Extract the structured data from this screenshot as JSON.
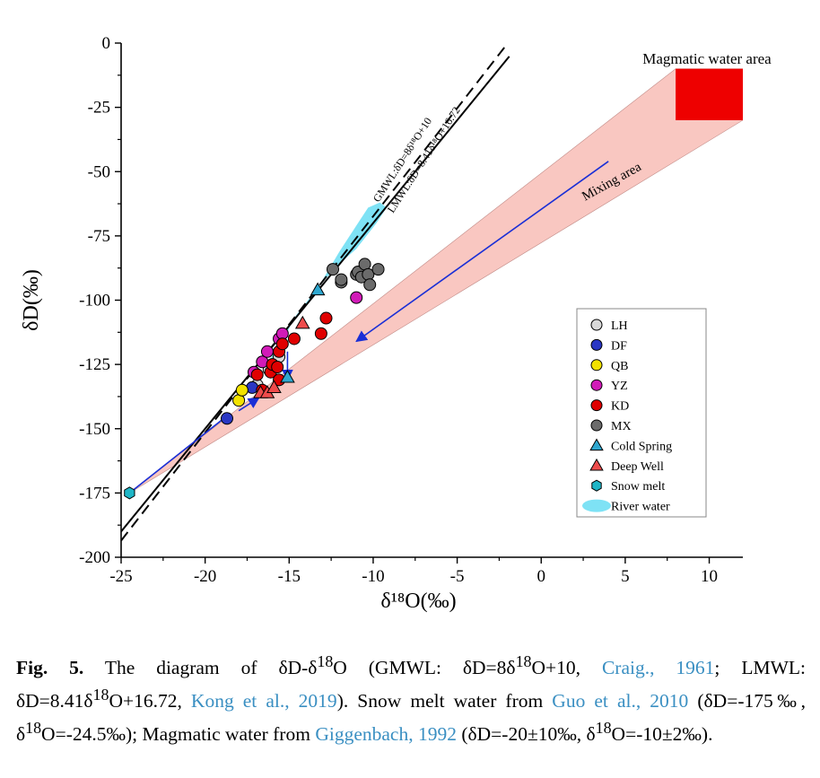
{
  "chart_data": {
    "type": "scatter",
    "xlabel": "δ¹⁸O(‰)",
    "ylabel": "δD(‰)",
    "xlim": [
      -25,
      12
    ],
    "ylim": [
      -200,
      0
    ],
    "x_ticks": [
      -25,
      -20,
      -15,
      -10,
      -5,
      0,
      5,
      10
    ],
    "y_ticks": [
      0,
      -25,
      -50,
      -75,
      -100,
      -125,
      -150,
      -175,
      -200
    ],
    "lines": [
      {
        "name": "GMWL:δD=8δ¹⁸O+10",
        "slope": 8,
        "intercept": 10,
        "style": "solid",
        "x_range": [
          -25,
          -1.9
        ]
      },
      {
        "name": "LMWL:δD=8.41δ¹⁸O+16.72",
        "slope": 8.41,
        "intercept": 16.72,
        "style": "dashed",
        "x_range": [
          -25,
          -1.4
        ]
      }
    ],
    "series": [
      {
        "name": "LH",
        "marker": "circle",
        "color": "#d9d9d9",
        "points": [
          [
            -16.9,
            -133
          ],
          [
            -16.2,
            -127
          ],
          [
            -15.6,
            -122
          ]
        ]
      },
      {
        "name": "DF",
        "marker": "circle",
        "color": "#2a37c4",
        "points": [
          [
            -18.7,
            -146
          ],
          [
            -17.2,
            -134
          ]
        ]
      },
      {
        "name": "QB",
        "marker": "circle",
        "color": "#f2e200",
        "points": [
          [
            -18.0,
            -139
          ],
          [
            -17.8,
            -135
          ]
        ]
      },
      {
        "name": "YZ",
        "marker": "circle",
        "color": "#d21bb8",
        "points": [
          [
            -17.1,
            -128
          ],
          [
            -16.6,
            -124
          ],
          [
            -16.3,
            -120
          ],
          [
            -15.6,
            -115
          ],
          [
            -15.4,
            -113
          ],
          [
            -11.0,
            -99
          ]
        ]
      },
      {
        "name": "KD",
        "marker": "circle",
        "color": "#e00000",
        "points": [
          [
            -16.9,
            -129
          ],
          [
            -16.6,
            -135
          ],
          [
            -16.1,
            -128
          ],
          [
            -16.0,
            -125
          ],
          [
            -15.7,
            -126
          ],
          [
            -15.6,
            -131
          ],
          [
            -15.6,
            -120
          ],
          [
            -15.4,
            -117
          ],
          [
            -14.7,
            -115
          ],
          [
            -13.1,
            -113
          ],
          [
            -12.8,
            -107
          ]
        ]
      },
      {
        "name": "MX",
        "marker": "circle",
        "color": "#6b6b6b",
        "points": [
          [
            -12.4,
            -88
          ],
          [
            -11.9,
            -93
          ],
          [
            -11.9,
            -92
          ],
          [
            -11.0,
            -90
          ],
          [
            -10.9,
            -89
          ],
          [
            -10.7,
            -91
          ],
          [
            -10.5,
            -86
          ],
          [
            -10.3,
            -90
          ],
          [
            -10.2,
            -94
          ],
          [
            -9.7,
            -88
          ]
        ]
      },
      {
        "name": "Cold Spring",
        "marker": "triangle",
        "color": "#2fa7cf",
        "points": [
          [
            -13.3,
            -96
          ],
          [
            -15.1,
            -130
          ]
        ]
      },
      {
        "name": "Deep Well",
        "marker": "triangle",
        "color": "#ee4b4b",
        "points": [
          [
            -16.7,
            -136
          ],
          [
            -16.3,
            -136
          ],
          [
            -15.9,
            -134
          ],
          [
            -14.2,
            -109
          ]
        ]
      },
      {
        "name": "Snow melt",
        "marker": "hexagon",
        "color": "#1fb6c7",
        "points": [
          [
            -24.5,
            -175
          ]
        ]
      }
    ],
    "river_water_color": "#7ee2f5",
    "mixing_area_color": "#f9c7c1",
    "magmatic_area_color": "#ee0000",
    "annotations": [
      "Magmatic water area",
      "Mixing area"
    ],
    "legend_position": "right-middle",
    "legend_labels": [
      "LH",
      "DF",
      "QB",
      "YZ",
      "KD",
      "MX",
      "Cold Spring",
      "Deep Well",
      "Snow melt",
      "River water"
    ]
  },
  "caption": {
    "fig_label": "Fig. 5.",
    "part1": " The diagram of δD-δ",
    "sup1": "18",
    "part2": "O (GMWL: δD=8δ",
    "sup2": "18",
    "part3": "O+10, ",
    "ref1": "Craig., 1961",
    "part4": "; LMWL: δD=8.41δ",
    "sup3": "18",
    "part5": "O+16.72, ",
    "ref2": "Kong et al., 2019",
    "part6": "). Snow melt water from ",
    "ref3": "Guo et al., 2010",
    "part7": " (δD=-175‰, δ",
    "sup4": "18",
    "part8": "O=-24.5‰); Magmatic water from ",
    "ref4": "Giggenbach, 1992",
    "part9": " (δD=-20±10‰, δ",
    "sup5": "18",
    "part10": "O=-10±2‰)."
  }
}
